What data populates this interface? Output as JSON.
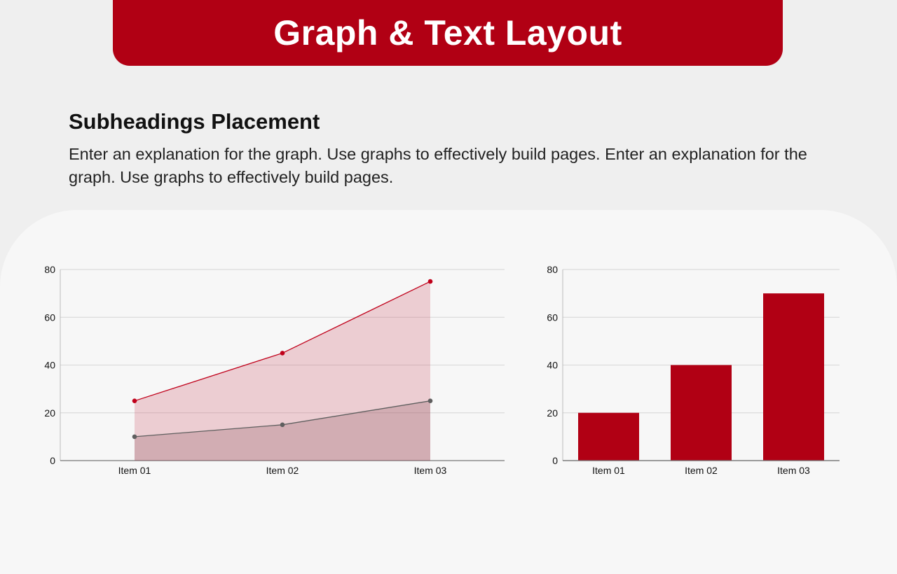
{
  "header": {
    "title": "Graph & Text Layout"
  },
  "content": {
    "subheading": "Subheadings Placement",
    "description": "Enter an explanation for the graph. Use graphs to effectively build pages. Enter an explanation for the graph. Use graphs to effectively build pages."
  },
  "colors": {
    "accent": "#b10014",
    "secondary_series": "#5f5f5f"
  },
  "chart_data": [
    {
      "type": "area",
      "categories": [
        "Item 01",
        "Item 02",
        "Item 03"
      ],
      "series": [
        {
          "values": [
            25,
            45,
            75
          ],
          "color": "#c0001a"
        },
        {
          "values": [
            10,
            15,
            25
          ],
          "color": "#5f5f5f"
        }
      ],
      "ylim": [
        0,
        80
      ],
      "yticks": [
        "0",
        "20",
        "40",
        "60",
        "80"
      ],
      "grid": true
    },
    {
      "type": "bar",
      "categories": [
        "Item 01",
        "Item 02",
        "Item 03"
      ],
      "values": [
        20,
        40,
        70
      ],
      "color": "#b10014",
      "ylim": [
        0,
        80
      ],
      "yticks": [
        "0",
        "20",
        "40",
        "60",
        "80"
      ],
      "grid": true
    }
  ]
}
